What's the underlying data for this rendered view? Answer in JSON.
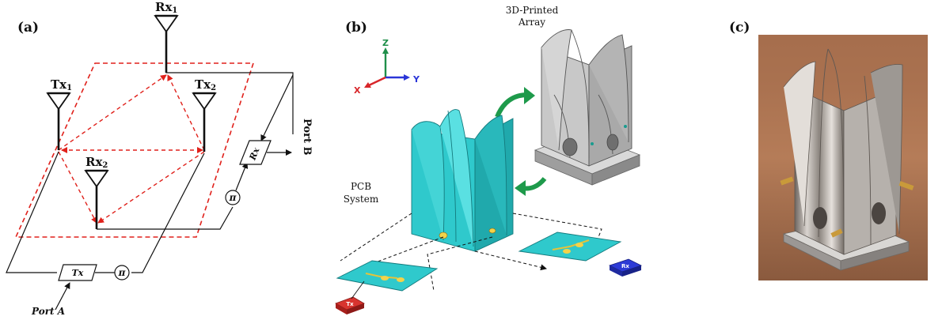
{
  "panels": {
    "a": {
      "label": "(a)",
      "antennas": {
        "rx1": "Rx",
        "tx1": "Tx",
        "tx2": "Tx",
        "rx2": "Rx"
      },
      "subscripts": {
        "rx1": "1",
        "tx1": "1",
        "tx2": "2",
        "rx2": "2"
      },
      "tx_box": "Tx",
      "rx_box": "Rx",
      "phase_symbol": "π",
      "port_a": "Port A",
      "port_b": "Port B"
    },
    "b": {
      "label": "(b)",
      "axes": {
        "z": "Z",
        "y": "Y",
        "x": "X"
      },
      "array_caption_line1": "3D-Printed",
      "array_caption_line2": "Array",
      "pcb_caption_line1": "PCB",
      "pcb_caption_line2": "System",
      "tx_tag": "Tx",
      "rx_tag": "Rx"
    },
    "c": {
      "label": "(c)"
    }
  },
  "colors": {
    "dashed_red": "#e0211b",
    "teal": "#2fc9cc",
    "gray_array": "#b9b9b9",
    "green_arrow": "#1e9a4b",
    "axis_z": "#1f8f4a",
    "axis_y": "#2a35d8",
    "axis_x": "#d8262a",
    "tx_tag": "#d8342f",
    "rx_tag": "#2d3bd6"
  }
}
